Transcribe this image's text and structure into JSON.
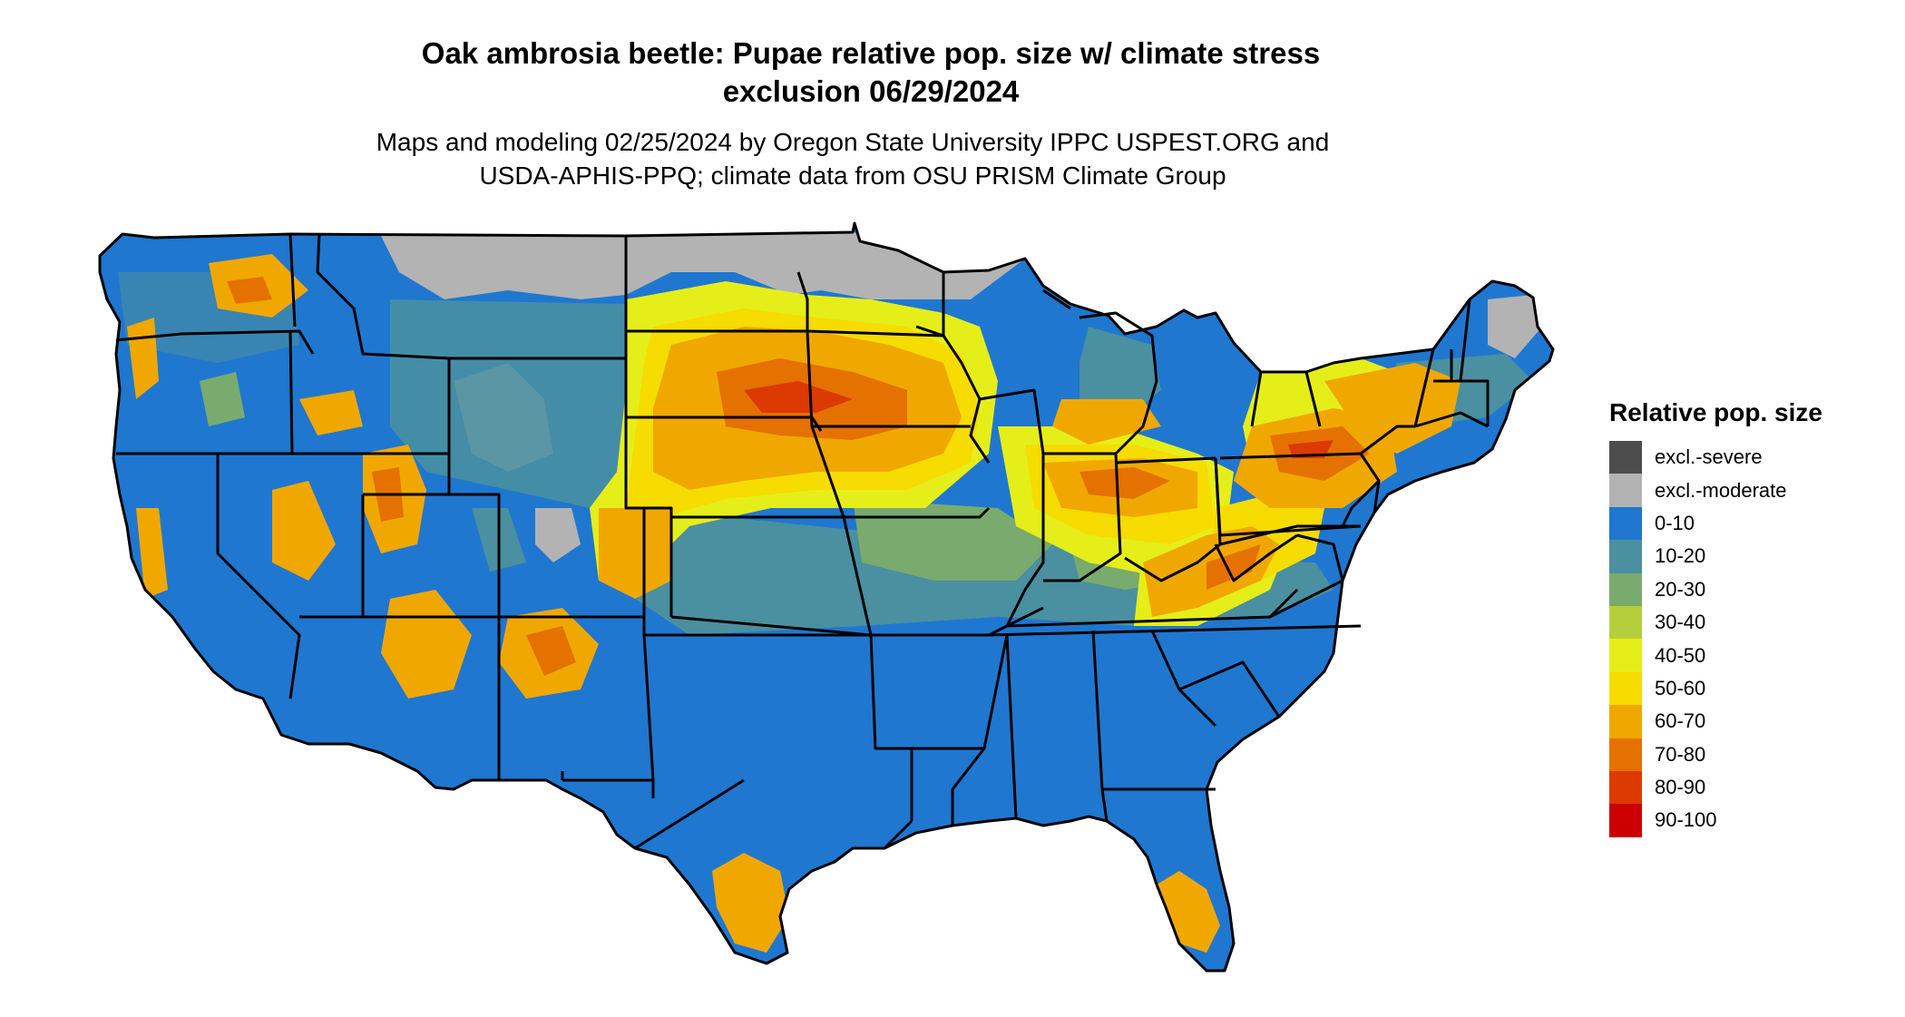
{
  "title_line1": "Oak ambrosia beetle: Pupae relative pop. size w/ climate stress",
  "title_line2": "exclusion 06/29/2024",
  "subtitle_line1": "Maps and modeling 02/25/2024 by Oregon State University IPPC USPEST.ORG and",
  "subtitle_line2": "USDA-APHIS-PPQ; climate data from OSU PRISM Climate Group",
  "legend": {
    "title": "Relative pop. size",
    "items": [
      {
        "label": "excl.-severe",
        "color": "#4d4d4d"
      },
      {
        "label": "excl.-moderate",
        "color": "#b3b3b3"
      },
      {
        "label": "0-10",
        "color": "#1f77d0"
      },
      {
        "label": "10-20",
        "color": "#4a90a0"
      },
      {
        "label": "20-30",
        "color": "#7aab6e"
      },
      {
        "label": "30-40",
        "color": "#b5cf3c"
      },
      {
        "label": "40-50",
        "color": "#e6ee1a"
      },
      {
        "label": "50-60",
        "color": "#f6dc00"
      },
      {
        "label": "60-70",
        "color": "#f0a800"
      },
      {
        "label": "70-80",
        "color": "#e47100"
      },
      {
        "label": "80-90",
        "color": "#dc3a00"
      },
      {
        "label": "90-100",
        "color": "#cc0000"
      }
    ]
  }
}
